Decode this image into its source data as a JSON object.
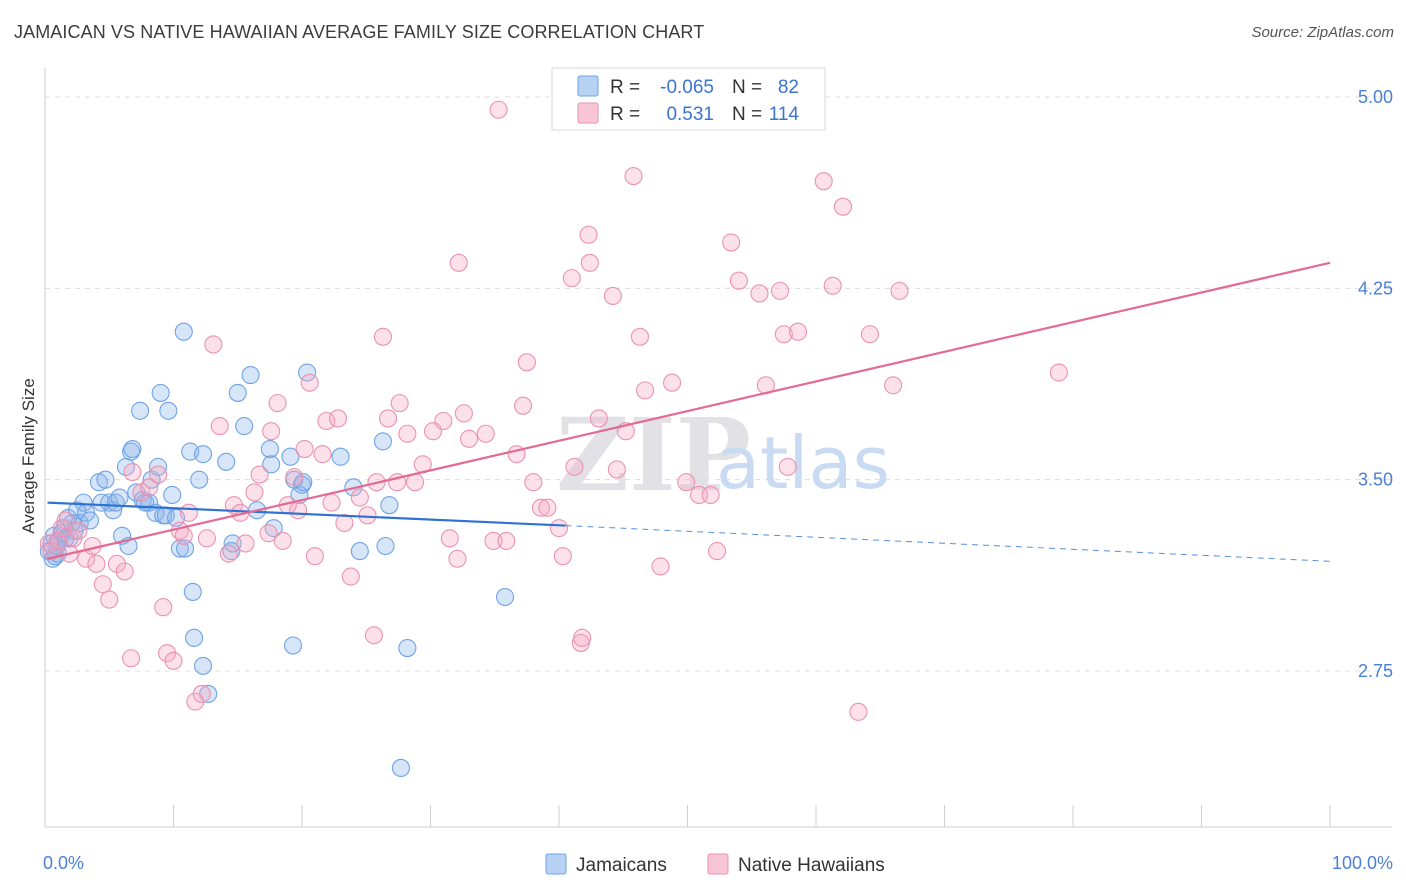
{
  "title": "JAMAICAN VS NATIVE HAWAIIAN AVERAGE FAMILY SIZE CORRELATION CHART",
  "source": "Source: ZipAtlas.com",
  "watermark": {
    "zip": "ZIP",
    "atlas": "atlas"
  },
  "legend": {
    "r_label": "R =",
    "n_label": "N =",
    "rows": [
      {
        "name": "Jamaicans",
        "r": "-0.065",
        "n": "82",
        "color": "#6fa3e6",
        "fill": "#b7d1f3"
      },
      {
        "name": "Native Hawaiians",
        "r": "0.531",
        "n": "114",
        "color": "#ea92b0",
        "fill": "#f8c5d6"
      }
    ]
  },
  "chart_data": {
    "type": "scatter",
    "title": "JAMAICAN VS NATIVE HAWAIIAN AVERAGE FAMILY SIZE CORRELATION CHART",
    "xlabel": "",
    "ylabel": "Average Family Size",
    "xlim": [
      0,
      100
    ],
    "ylim": [
      2.0,
      5.1
    ],
    "x_tick_labels": [
      "0.0%",
      "100.0%"
    ],
    "y_ticks": [
      2.75,
      3.5,
      4.25,
      5.0
    ],
    "y_tick_labels": [
      "2.75",
      "3.50",
      "4.25",
      "5.00"
    ],
    "grid": true,
    "series": [
      {
        "name": "Jamaicans",
        "color": "#6fa3e6",
        "trend": {
          "x0": 0.2,
          "y0": 3.41,
          "x1": 40.5,
          "y1": 3.32,
          "dash_to_x": 100,
          "dash_to_y": 3.18
        },
        "points": [
          [
            0.3,
            3.22
          ],
          [
            0.5,
            3.25
          ],
          [
            0.6,
            3.19
          ],
          [
            0.7,
            3.28
          ],
          [
            0.8,
            3.2
          ],
          [
            0.9,
            3.24
          ],
          [
            1.0,
            3.21
          ],
          [
            1.1,
            3.26
          ],
          [
            1.3,
            3.29
          ],
          [
            1.5,
            3.31
          ],
          [
            1.6,
            3.27
          ],
          [
            1.8,
            3.35
          ],
          [
            1.9,
            3.27
          ],
          [
            2.1,
            3.33
          ],
          [
            2.3,
            3.3
          ],
          [
            2.5,
            3.38
          ],
          [
            2.7,
            3.33
          ],
          [
            3.0,
            3.41
          ],
          [
            3.2,
            3.37
          ],
          [
            3.5,
            3.34
          ],
          [
            4.2,
            3.49
          ],
          [
            4.4,
            3.41
          ],
          [
            4.7,
            3.5
          ],
          [
            5.0,
            3.41
          ],
          [
            5.3,
            3.38
          ],
          [
            5.5,
            3.41
          ],
          [
            5.8,
            3.43
          ],
          [
            6.0,
            3.28
          ],
          [
            6.3,
            3.55
          ],
          [
            6.5,
            3.24
          ],
          [
            6.7,
            3.61
          ],
          [
            6.8,
            3.62
          ],
          [
            7.1,
            3.45
          ],
          [
            7.4,
            3.77
          ],
          [
            7.6,
            3.42
          ],
          [
            7.8,
            3.41
          ],
          [
            8.1,
            3.41
          ],
          [
            8.3,
            3.5
          ],
          [
            8.6,
            3.37
          ],
          [
            8.8,
            3.55
          ],
          [
            9.0,
            3.84
          ],
          [
            9.2,
            3.36
          ],
          [
            9.4,
            3.36
          ],
          [
            9.6,
            3.77
          ],
          [
            9.9,
            3.44
          ],
          [
            10.2,
            3.35
          ],
          [
            10.5,
            3.23
          ],
          [
            10.8,
            4.08
          ],
          [
            10.9,
            3.23
          ],
          [
            11.3,
            3.61
          ],
          [
            11.5,
            3.06
          ],
          [
            11.6,
            2.88
          ],
          [
            12.0,
            3.5
          ],
          [
            12.3,
            2.77
          ],
          [
            12.3,
            3.6
          ],
          [
            12.7,
            2.66
          ],
          [
            14.1,
            3.57
          ],
          [
            14.5,
            3.22
          ],
          [
            14.6,
            3.25
          ],
          [
            15.0,
            3.84
          ],
          [
            15.5,
            3.71
          ],
          [
            16.0,
            3.91
          ],
          [
            16.5,
            3.38
          ],
          [
            17.5,
            3.62
          ],
          [
            17.6,
            3.56
          ],
          [
            17.8,
            3.31
          ],
          [
            19.1,
            3.59
          ],
          [
            19.3,
            2.85
          ],
          [
            19.4,
            3.5
          ],
          [
            19.8,
            3.44
          ],
          [
            20.0,
            3.48
          ],
          [
            20.1,
            3.49
          ],
          [
            20.4,
            3.92
          ],
          [
            23.0,
            3.59
          ],
          [
            24.0,
            3.47
          ],
          [
            24.5,
            3.22
          ],
          [
            26.3,
            3.65
          ],
          [
            26.5,
            3.24
          ],
          [
            26.8,
            3.4
          ],
          [
            27.7,
            2.37
          ],
          [
            28.2,
            2.84
          ],
          [
            35.8,
            3.04
          ]
        ]
      },
      {
        "name": "Native Hawaiians",
        "color": "#ea92b0",
        "trend": {
          "x0": 0.2,
          "y0": 3.19,
          "x1": 100,
          "y1": 4.35
        },
        "points": [
          [
            0.3,
            3.25
          ],
          [
            0.5,
            3.22
          ],
          [
            1.0,
            3.26
          ],
          [
            1.3,
            3.31
          ],
          [
            1.6,
            3.34
          ],
          [
            1.9,
            3.21
          ],
          [
            2.2,
            3.27
          ],
          [
            2.6,
            3.3
          ],
          [
            3.2,
            3.19
          ],
          [
            3.7,
            3.24
          ],
          [
            4.0,
            3.17
          ],
          [
            4.5,
            3.09
          ],
          [
            5.0,
            3.03
          ],
          [
            5.6,
            3.17
          ],
          [
            6.2,
            3.14
          ],
          [
            6.7,
            2.8
          ],
          [
            6.8,
            3.53
          ],
          [
            7.5,
            3.45
          ],
          [
            8.1,
            3.47
          ],
          [
            8.8,
            3.52
          ],
          [
            9.2,
            3.0
          ],
          [
            9.5,
            2.82
          ],
          [
            10.0,
            2.79
          ],
          [
            10.5,
            3.3
          ],
          [
            10.8,
            3.28
          ],
          [
            11.2,
            3.37
          ],
          [
            11.7,
            2.63
          ],
          [
            12.2,
            2.66
          ],
          [
            12.6,
            3.27
          ],
          [
            13.1,
            4.03
          ],
          [
            13.6,
            3.71
          ],
          [
            14.3,
            3.21
          ],
          [
            14.7,
            3.4
          ],
          [
            15.2,
            3.37
          ],
          [
            15.6,
            3.25
          ],
          [
            16.3,
            3.45
          ],
          [
            16.7,
            3.52
          ],
          [
            17.4,
            3.29
          ],
          [
            17.6,
            3.69
          ],
          [
            18.1,
            3.8
          ],
          [
            18.5,
            3.26
          ],
          [
            18.9,
            3.4
          ],
          [
            19.4,
            3.51
          ],
          [
            19.7,
            3.38
          ],
          [
            20.2,
            3.62
          ],
          [
            20.6,
            3.88
          ],
          [
            21.0,
            3.2
          ],
          [
            21.6,
            3.6
          ],
          [
            21.9,
            3.73
          ],
          [
            22.3,
            3.41
          ],
          [
            22.8,
            3.74
          ],
          [
            23.3,
            3.33
          ],
          [
            23.8,
            3.12
          ],
          [
            24.5,
            3.43
          ],
          [
            25.1,
            3.36
          ],
          [
            25.6,
            2.89
          ],
          [
            25.8,
            3.49
          ],
          [
            26.3,
            4.06
          ],
          [
            26.7,
            3.74
          ],
          [
            27.4,
            3.49
          ],
          [
            27.6,
            3.8
          ],
          [
            28.2,
            3.68
          ],
          [
            28.8,
            3.49
          ],
          [
            29.4,
            3.56
          ],
          [
            30.2,
            3.69
          ],
          [
            31.0,
            3.73
          ],
          [
            31.5,
            3.27
          ],
          [
            32.1,
            3.19
          ],
          [
            32.2,
            4.35
          ],
          [
            32.6,
            3.76
          ],
          [
            33.0,
            3.66
          ],
          [
            34.3,
            3.68
          ],
          [
            34.9,
            3.26
          ],
          [
            35.3,
            4.95
          ],
          [
            35.9,
            3.26
          ],
          [
            36.7,
            3.6
          ],
          [
            37.2,
            3.79
          ],
          [
            37.5,
            3.96
          ],
          [
            38.0,
            3.49
          ],
          [
            38.6,
            3.39
          ],
          [
            39.1,
            3.39
          ],
          [
            40.0,
            3.31
          ],
          [
            40.3,
            3.2
          ],
          [
            41.0,
            4.29
          ],
          [
            41.2,
            3.55
          ],
          [
            41.7,
            2.86
          ],
          [
            41.8,
            2.88
          ],
          [
            42.3,
            4.46
          ],
          [
            42.4,
            4.35
          ],
          [
            43.1,
            3.74
          ],
          [
            44.2,
            4.22
          ],
          [
            44.5,
            3.54
          ],
          [
            45.2,
            3.69
          ],
          [
            45.8,
            4.69
          ],
          [
            46.3,
            4.06
          ],
          [
            46.7,
            3.85
          ],
          [
            47.9,
            3.16
          ],
          [
            48.8,
            3.88
          ],
          [
            49.9,
            3.49
          ],
          [
            50.9,
            3.44
          ],
          [
            51.8,
            3.44
          ],
          [
            52.3,
            3.22
          ],
          [
            53.4,
            4.43
          ],
          [
            54.0,
            4.28
          ],
          [
            55.6,
            4.23
          ],
          [
            56.1,
            3.87
          ],
          [
            57.2,
            4.24
          ],
          [
            57.5,
            4.07
          ],
          [
            57.8,
            3.55
          ],
          [
            58.6,
            4.08
          ],
          [
            60.6,
            4.67
          ],
          [
            61.3,
            4.26
          ],
          [
            62.1,
            4.57
          ],
          [
            64.2,
            4.07
          ],
          [
            66.0,
            3.87
          ],
          [
            66.5,
            4.24
          ],
          [
            78.9,
            3.92
          ],
          [
            63.3,
            2.59
          ]
        ]
      }
    ]
  },
  "bottom_legend": {
    "items": [
      "Jamaicans",
      "Native Hawaiians"
    ]
  }
}
